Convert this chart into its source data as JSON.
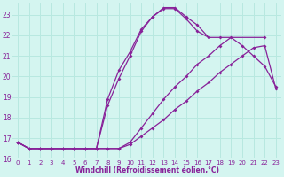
{
  "xlabel": "Windchill (Refroidissement éolien,°C)",
  "bg_color": "#d4f5f0",
  "grid_color": "#b8e8e0",
  "line_color": "#882299",
  "xlim": [
    -0.5,
    23.5
  ],
  "ylim": [
    16,
    23.6
  ],
  "xticks": [
    0,
    1,
    2,
    3,
    4,
    5,
    6,
    7,
    8,
    9,
    10,
    11,
    12,
    13,
    14,
    15,
    16,
    17,
    18,
    19,
    20,
    21,
    22,
    23
  ],
  "yticks": [
    16,
    17,
    18,
    19,
    20,
    21,
    22,
    23
  ],
  "series": [
    {
      "x": [
        0,
        1,
        2,
        3,
        4,
        5,
        6,
        7,
        8,
        9,
        10,
        11,
        12,
        13,
        14,
        15,
        16,
        17
      ],
      "y": [
        16.8,
        16.5,
        16.5,
        16.5,
        16.5,
        16.5,
        16.5,
        16.5,
        18.9,
        20.3,
        21.2,
        22.3,
        22.9,
        23.35,
        23.35,
        22.9,
        22.5,
        21.9
      ]
    },
    {
      "x": [
        0,
        1,
        2,
        3,
        4,
        5,
        6,
        7,
        8,
        9,
        10,
        11,
        12,
        13,
        14,
        15,
        16,
        17,
        18,
        22
      ],
      "y": [
        16.8,
        16.5,
        16.5,
        16.5,
        16.5,
        16.5,
        16.5,
        16.5,
        18.6,
        19.9,
        21.0,
        22.2,
        22.9,
        23.3,
        23.3,
        22.8,
        22.2,
        21.9,
        21.9,
        21.9
      ]
    },
    {
      "x": [
        0,
        1,
        2,
        3,
        4,
        5,
        6,
        7,
        8,
        9,
        10,
        11,
        12,
        13,
        14,
        15,
        16,
        17,
        18,
        19,
        20,
        21,
        22,
        23
      ],
      "y": [
        16.8,
        16.5,
        16.5,
        16.5,
        16.5,
        16.5,
        16.5,
        16.5,
        16.5,
        16.5,
        16.8,
        17.5,
        18.2,
        18.9,
        19.5,
        20.0,
        20.6,
        21.0,
        21.5,
        21.9,
        21.5,
        21.0,
        20.5,
        19.5
      ]
    },
    {
      "x": [
        0,
        1,
        2,
        3,
        4,
        5,
        6,
        7,
        8,
        9,
        10,
        11,
        12,
        13,
        14,
        15,
        16,
        17,
        18,
        19,
        20,
        21,
        22,
        23
      ],
      "y": [
        16.8,
        16.5,
        16.5,
        16.5,
        16.5,
        16.5,
        16.5,
        16.5,
        16.5,
        16.5,
        16.7,
        17.1,
        17.5,
        17.9,
        18.4,
        18.8,
        19.3,
        19.7,
        20.2,
        20.6,
        21.0,
        21.4,
        21.5,
        19.4
      ]
    }
  ]
}
